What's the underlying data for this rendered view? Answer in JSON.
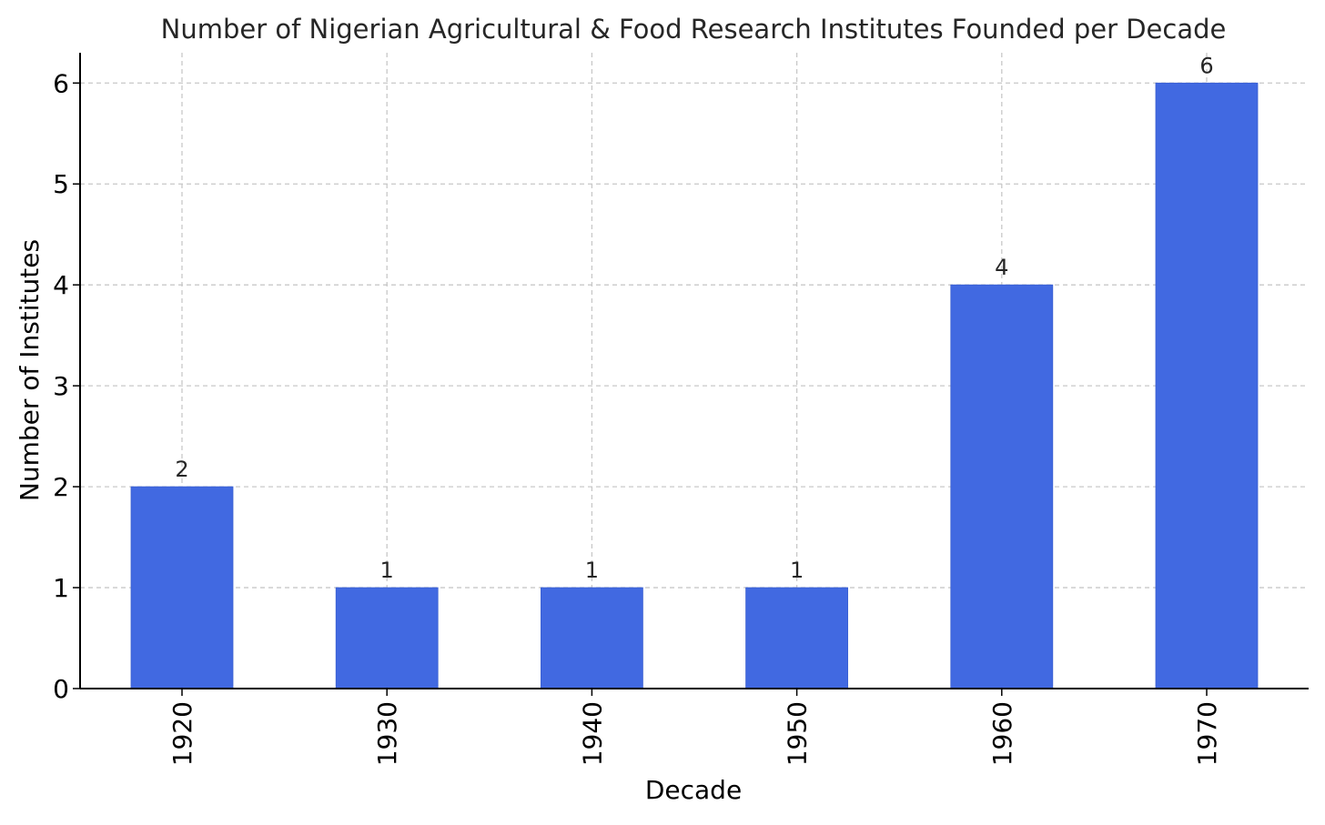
{
  "chart_data": {
    "type": "bar",
    "title": "Number of Nigerian Agricultural & Food Research Institutes Founded per Decade",
    "xlabel": "Decade",
    "ylabel": "Number of Institutes",
    "categories": [
      "1920",
      "1930",
      "1940",
      "1950",
      "1960",
      "1970"
    ],
    "values": [
      2,
      1,
      1,
      1,
      4,
      6
    ],
    "data_labels": [
      "2",
      "1",
      "1",
      "1",
      "4",
      "6"
    ],
    "yticks": [
      0,
      1,
      2,
      3,
      4,
      5,
      6
    ],
    "ylim": [
      0,
      6.3
    ],
    "grid": true,
    "grid_style": "dashed",
    "x_tick_rotation": "vertical",
    "colors": {
      "bar": "#4169e1",
      "grid": "#c8c8c8",
      "text": "#262626",
      "axis": "#000000"
    }
  }
}
